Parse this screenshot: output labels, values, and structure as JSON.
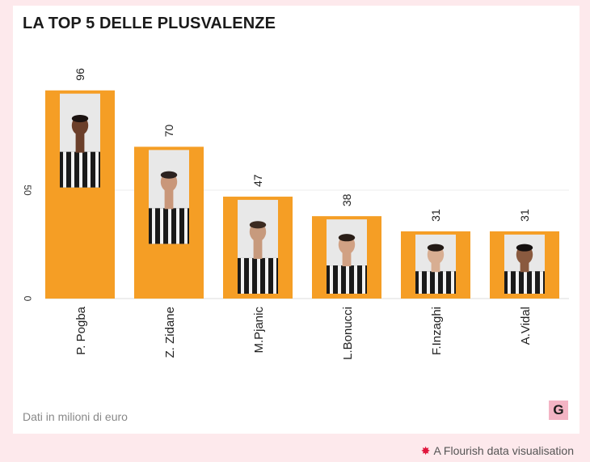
{
  "header": {
    "title": "LA TOP 5 DELLE PLUSVALENZE"
  },
  "chart_data": {
    "type": "bar",
    "title": "LA TOP 5 DELLE PLUSVALENZE",
    "xlabel": "",
    "ylabel": "",
    "ylim": [
      0,
      100
    ],
    "y_ticks": [
      "0",
      "50"
    ],
    "grid": true,
    "categories": [
      "P. Pogba",
      "Z. Zidane",
      "M.Pjanic",
      "L.Bonucci",
      "F.Inzaghi",
      "A.Vidal"
    ],
    "values": [
      96,
      70,
      47,
      38,
      31,
      31
    ],
    "value_labels": [
      "96",
      "70",
      "47",
      "38",
      "31",
      "31"
    ],
    "bar_color": "#f59e25",
    "image_icons": [
      "player-photo-pogba",
      "player-photo-zidane",
      "player-photo-pjanic",
      "player-photo-bonucci",
      "player-photo-inzaghi",
      "player-photo-vidal"
    ]
  },
  "note": "Dati in milioni di euro",
  "logo": {
    "letter": "G",
    "color": "#f3b4c4"
  },
  "footer": {
    "text": "A Flourish data visualisation",
    "icon": "flourish-star-icon",
    "icon_color": "#e0163c"
  }
}
